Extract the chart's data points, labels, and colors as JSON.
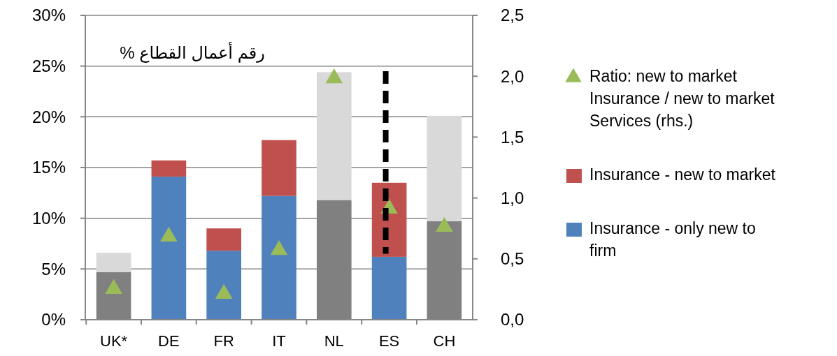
{
  "chart_data": {
    "type": "bar",
    "stacked": true,
    "categories": [
      "UK*",
      "DE",
      "FR",
      "IT",
      "NL",
      "ES",
      "CH"
    ],
    "series": [
      {
        "color": "#808080",
        "values": [
          4.7,
          null,
          null,
          null,
          11.8,
          null,
          9.7
        ]
      },
      {
        "name": "Insurance - only new to firm",
        "color": "#4f81bd",
        "values": [
          null,
          14.1,
          6.8,
          12.2,
          null,
          6.2,
          null
        ]
      },
      {
        "name": "Insurance - new to market",
        "color": "#c0504d",
        "values": [
          null,
          1.6,
          2.2,
          5.5,
          null,
          7.3,
          null
        ]
      },
      {
        "color": "#d9d9d9",
        "values": [
          1.9,
          null,
          null,
          null,
          12.6,
          null,
          10.4
        ]
      },
      {
        "name": "Ratio: new to market Insurance / new to market Services (rhs.)",
        "type": "scatter",
        "axis": "y2",
        "marker": "triangle",
        "color": "#9bbb59",
        "values": [
          0.27,
          0.7,
          0.23,
          0.59,
          2.0,
          0.93,
          0.78
        ]
      }
    ],
    "ylim": [
      0,
      30
    ],
    "yticks": [
      {
        "value": 0,
        "label": "0%"
      },
      {
        "value": 5,
        "label": "5%"
      },
      {
        "value": 10,
        "label": "10%"
      },
      {
        "value": 15,
        "label": "15%"
      },
      {
        "value": 20,
        "label": "20%"
      },
      {
        "value": 25,
        "label": "25%"
      },
      {
        "value": 30,
        "label": "30%"
      }
    ],
    "y2lim": [
      0,
      2.5
    ],
    "y2ticks": [
      {
        "value": 0,
        "label": "0,0"
      },
      {
        "value": 0.5,
        "label": "0,5"
      },
      {
        "value": 1,
        "label": "1,0"
      },
      {
        "value": 1.5,
        "label": "1,5"
      },
      {
        "value": 2,
        "label": "2,0"
      },
      {
        "value": 2.5,
        "label": "2,5"
      }
    ],
    "grid": "y",
    "legend": "right",
    "ref_lines": [
      {
        "axis": "x",
        "value": "ES",
        "color": "#000000",
        "line_style": "dashed"
      }
    ],
    "annotations": [
      "رقم أعمال القطاع %"
    ]
  }
}
